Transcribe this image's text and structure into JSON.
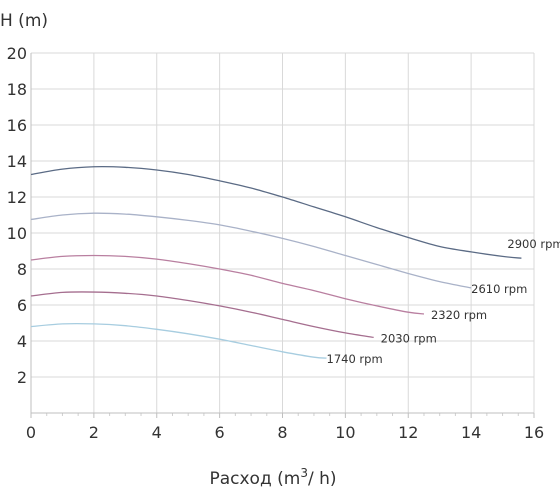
{
  "chart_data": {
    "type": "line",
    "title": "",
    "ylabel": "H (m)",
    "xlabel_main": "Расход (m",
    "xlabel_sup": "3",
    "xlabel_tail": "/ h)",
    "xlim": [
      0,
      16
    ],
    "ylim": [
      0,
      20
    ],
    "x_ticks": [
      0,
      2,
      4,
      6,
      8,
      10,
      12,
      14,
      16
    ],
    "y_ticks": [
      2,
      4,
      6,
      8,
      10,
      12,
      14,
      16,
      18,
      20
    ],
    "grid": true,
    "legend": "none",
    "series": [
      {
        "name": "2900 rpm",
        "color": "#5b6b85",
        "x": [
          0,
          1,
          2,
          3,
          4,
          5,
          6,
          7,
          8,
          9,
          10,
          11,
          12,
          13,
          14,
          15,
          15.6
        ],
        "y": [
          13.25,
          13.55,
          13.68,
          13.65,
          13.5,
          13.25,
          12.9,
          12.5,
          12.0,
          11.45,
          10.9,
          10.3,
          9.75,
          9.25,
          8.95,
          8.7,
          8.6
        ]
      },
      {
        "name": "2610 rpm",
        "color": "#a9b2c8",
        "x": [
          0,
          1,
          2,
          3,
          4,
          5,
          6,
          7,
          8,
          9,
          10,
          11,
          12,
          13,
          14
        ],
        "y": [
          10.75,
          11.0,
          11.1,
          11.05,
          10.9,
          10.7,
          10.45,
          10.1,
          9.7,
          9.25,
          8.75,
          8.25,
          7.75,
          7.3,
          6.95
        ]
      },
      {
        "name": "2320 rpm",
        "color": "#b97fa0",
        "x": [
          0,
          1,
          2,
          3,
          4,
          5,
          6,
          7,
          8,
          9,
          10,
          11,
          12,
          12.5
        ],
        "y": [
          8.5,
          8.7,
          8.75,
          8.7,
          8.55,
          8.3,
          8.0,
          7.65,
          7.2,
          6.8,
          6.35,
          5.95,
          5.6,
          5.5
        ]
      },
      {
        "name": "2030 rpm",
        "color": "#a56e8f",
        "x": [
          0,
          1,
          2,
          3,
          4,
          5,
          6,
          7,
          8,
          9,
          10,
          10.9
        ],
        "y": [
          6.5,
          6.7,
          6.72,
          6.65,
          6.5,
          6.25,
          5.95,
          5.6,
          5.2,
          4.8,
          4.45,
          4.2
        ]
      },
      {
        "name": "1740 rpm",
        "color": "#a7cde0",
        "x": [
          0,
          1,
          2,
          3,
          4,
          5,
          6,
          7,
          8,
          9,
          9.4
        ],
        "y": [
          4.8,
          4.95,
          4.95,
          4.85,
          4.65,
          4.4,
          4.1,
          3.75,
          3.4,
          3.1,
          3.05
        ]
      }
    ]
  }
}
